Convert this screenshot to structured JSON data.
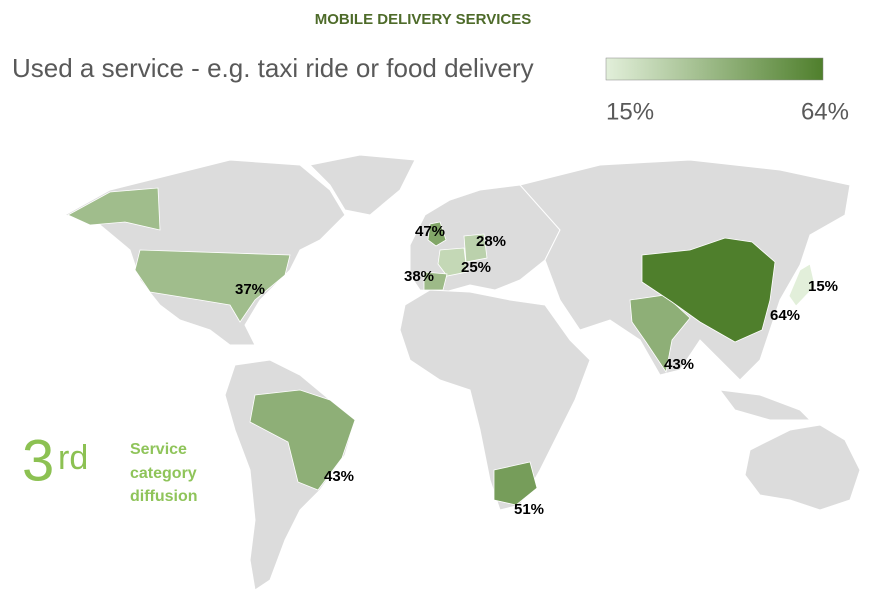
{
  "chart_data": {
    "type": "choropleth",
    "title": "MOBILE DELIVERY SERVICES",
    "subtitle": "Used a service - e.g. taxi ride or food delivery",
    "values": [
      37,
      47,
      28,
      25,
      38,
      43,
      51,
      43,
      64,
      15
    ],
    "value_labels": [
      "37%",
      "47%",
      "28%",
      "25%",
      "38%",
      "43%",
      "51%",
      "43%",
      "64%",
      "15%"
    ],
    "color_scale": {
      "min": 15,
      "max": 64,
      "min_label": "15%",
      "max_label": "64%",
      "low_color": "#e2efda",
      "high_color": "#4f7f2c"
    },
    "base_color": "#dcdcdc",
    "rank_number": "3",
    "rank_suffix": "rd",
    "rank_caption": [
      "Service",
      "category",
      "diffusion"
    ]
  }
}
